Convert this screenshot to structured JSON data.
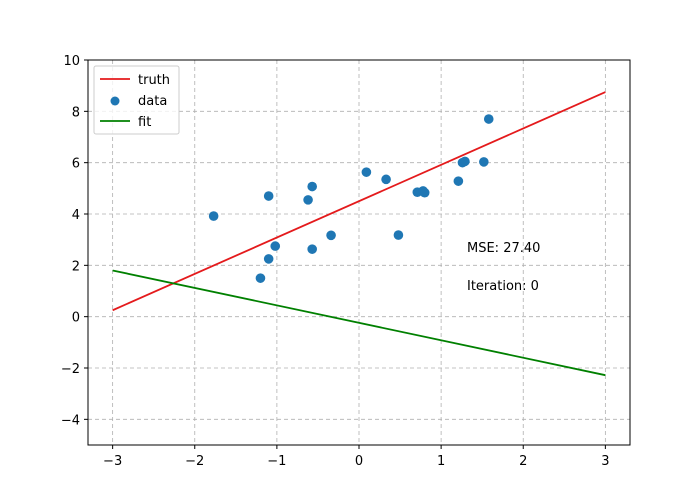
{
  "chart_data": {
    "type": "scatter",
    "title": "",
    "xlabel": "",
    "ylabel": "",
    "xlim": [
      -3.3,
      3.3
    ],
    "ylim": [
      -5,
      10
    ],
    "xticks": [
      -3,
      -2,
      -1,
      0,
      1,
      2,
      3
    ],
    "yticks": [
      -4,
      -2,
      0,
      2,
      4,
      6,
      8,
      10
    ],
    "xtick_labels": [
      "−3",
      "−2",
      "−1",
      "0",
      "1",
      "2",
      "3"
    ],
    "ytick_labels": [
      "−4",
      "−2",
      "0",
      "2",
      "4",
      "6",
      "8",
      "10"
    ],
    "grid": true,
    "legend_position": "top-left",
    "series": [
      {
        "name": "truth",
        "type": "line",
        "color": "#e41a1c",
        "x": [
          -3,
          3
        ],
        "y": [
          0.25,
          8.75
        ]
      },
      {
        "name": "data",
        "type": "scatter",
        "color": "#1f77b4",
        "points": [
          [
            -1.77,
            3.92
          ],
          [
            -1.1,
            4.7
          ],
          [
            -1.1,
            2.25
          ],
          [
            -1.2,
            1.5
          ],
          [
            -1.02,
            2.75
          ],
          [
            -0.57,
            5.07
          ],
          [
            -0.62,
            4.55
          ],
          [
            -0.57,
            2.63
          ],
          [
            -0.34,
            3.17
          ],
          [
            0.09,
            5.63
          ],
          [
            0.33,
            5.35
          ],
          [
            0.48,
            3.18
          ],
          [
            0.71,
            4.85
          ],
          [
            0.78,
            4.9
          ],
          [
            0.8,
            4.83
          ],
          [
            1.21,
            5.28
          ],
          [
            1.26,
            6.0
          ],
          [
            1.29,
            6.05
          ],
          [
            1.52,
            6.03
          ],
          [
            1.58,
            7.7
          ]
        ]
      },
      {
        "name": "fit",
        "type": "line",
        "color": "#008000",
        "x": [
          -3,
          3
        ],
        "y": [
          1.8,
          -2.28
        ]
      }
    ],
    "annotations": {
      "mse": "MSE: 27.40",
      "iteration": "Iteration: 0"
    }
  }
}
